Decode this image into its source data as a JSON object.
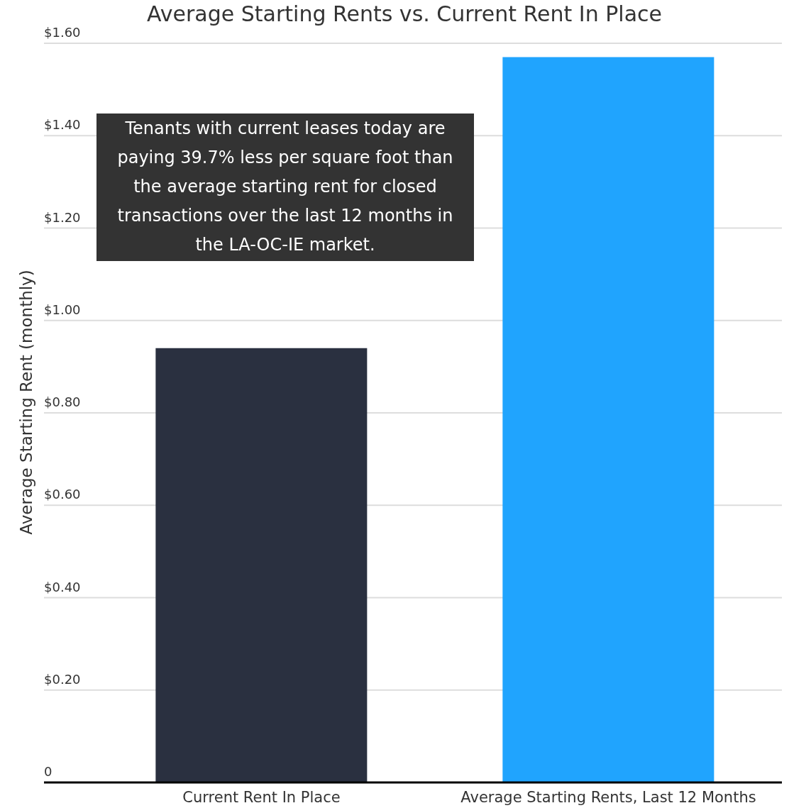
{
  "chart_data": {
    "type": "bar",
    "title": "Average Starting Rents vs. Current Rent In Place",
    "ylabel": "Average Starting Rent (monthly)",
    "categories": [
      "Current Rent In Place",
      "Average Starting Rents, Last 12 Months"
    ],
    "values": [
      0.94,
      1.57
    ],
    "colors": [
      "#2a3040",
      "#20a4fe"
    ],
    "ylim": [
      0,
      1.6
    ],
    "yticks": [
      0,
      {
        "value": 0.2,
        "label": "$0.20"
      },
      {
        "value": 0.4,
        "label": "$0.40"
      },
      {
        "value": 0.6,
        "label": "$0.60"
      },
      {
        "value": 0.8,
        "label": "$0.80"
      },
      {
        "value": 1.0,
        "label": "$1.00"
      },
      {
        "value": 1.2,
        "label": "$1.20"
      },
      {
        "value": 1.4,
        "label": "$1.40"
      },
      {
        "value": 1.6,
        "label": "$1.60"
      }
    ],
    "grid": "y",
    "annotations": [
      "Tenants with current leases today are paying 39.7% less per square foot than the average starting rent for closed transactions over the last 12 months in the LA-OC-IE market."
    ]
  }
}
